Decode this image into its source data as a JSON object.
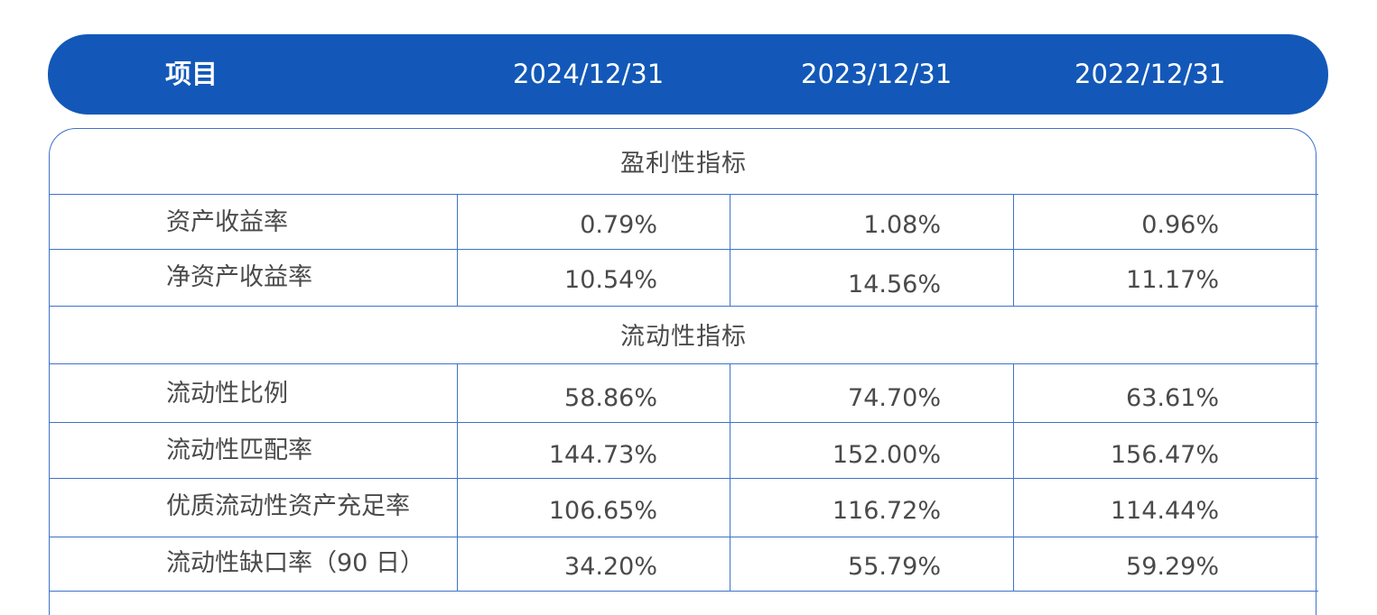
{
  "header": {
    "item_label": "项目",
    "dates": [
      "2024/12/31",
      "2023/12/31",
      "2022/12/31"
    ]
  },
  "sections": [
    {
      "title": "盈利性指标",
      "rows": [
        {
          "name": "资产收益率",
          "values": [
            "0.79%",
            "1.08%",
            "0.96%"
          ]
        },
        {
          "name": "净资产收益率",
          "values": [
            "10.54%",
            "14.56%",
            "11.17%"
          ]
        }
      ]
    },
    {
      "title": "流动性指标",
      "rows": [
        {
          "name": "流动性比例",
          "values": [
            "58.86%",
            "74.70%",
            "63.61%"
          ]
        },
        {
          "name": "流动性匹配率",
          "values": [
            "144.73%",
            "152.00%",
            "156.47%"
          ]
        },
        {
          "name": "优质流动性资产充足率",
          "values": [
            "106.65%",
            "116.72%",
            "114.44%"
          ]
        },
        {
          "name": "流动性缺口率（90 日）",
          "values": [
            "34.20%",
            "55.79%",
            "59.29%"
          ]
        }
      ]
    }
  ],
  "colors": {
    "header_bg": "#1358b8",
    "border": "#3f72c9",
    "text": "#4a4a4a"
  }
}
